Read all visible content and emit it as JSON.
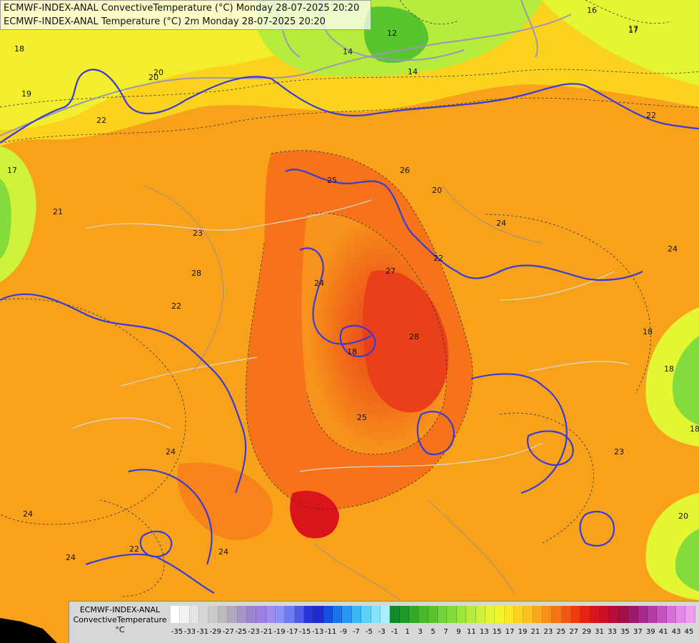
{
  "map": {
    "title_line1": "ECMWF-INDEX-ANAL ConvectiveTemperature (°C) Monday 28-07-2025 20:20",
    "title_line2": "ECMWF-INDEX-ANAL Temperature (°C) 2m Monday 28-07-2025 20:20",
    "contour_labels": [
      "16",
      "17",
      "18",
      "19",
      "20",
      "21",
      "22",
      "22",
      "23",
      "24",
      "24",
      "25",
      "25",
      "26",
      "27",
      "28",
      "28",
      "18",
      "20",
      "22",
      "24",
      "24",
      "14",
      "14",
      "12",
      "17",
      "18",
      "20",
      "22",
      "23",
      "24",
      "24",
      "24",
      "18",
      "22",
      "20",
      "17",
      "18"
    ]
  },
  "legend": {
    "title_line1": "ECMWF-INDEX-ANAL",
    "title_line2": "ConvectiveTemperature",
    "title_line3": "°C",
    "ticks": [
      "-35",
      "-33",
      "-31",
      "-29",
      "-27",
      "-25",
      "-23",
      "-21",
      "-19",
      "-17",
      "-15",
      "-13",
      "-11",
      "-9",
      "-7",
      "-5",
      "-3",
      "-1",
      "1",
      "3",
      "5",
      "7",
      "9",
      "11",
      "13",
      "15",
      "17",
      "19",
      "21",
      "23",
      "25",
      "27",
      "29",
      "31",
      "33",
      "35",
      "37",
      "39",
      "41",
      "43",
      "45"
    ],
    "colors": [
      "#ffffff",
      "#f2f2f2",
      "#e4e4e4",
      "#d6d6d6",
      "#c9c9c9",
      "#bcbcbc",
      "#b0a7bf",
      "#a696c8",
      "#9c84d2",
      "#a080e6",
      "#9f8cf0",
      "#8c91f4",
      "#6f7cf0",
      "#4e5be8",
      "#2a34d8",
      "#1e2bd2",
      "#1450e0",
      "#1a73e8",
      "#2896f0",
      "#38b8f4",
      "#5cd3f6",
      "#85e4f8",
      "#a8f2ff",
      "#128a2c",
      "#1e9a2a",
      "#32aa2a",
      "#48b92a",
      "#58c530",
      "#6ed23a",
      "#84dc3c",
      "#9ee53c",
      "#b6ec3c",
      "#cff23a",
      "#e4f532",
      "#f3f52a",
      "#fbe822",
      "#fbd41e",
      "#fbbf1c",
      "#fba81a",
      "#f98e18",
      "#f77316",
      "#f25614",
      "#ee3b12",
      "#e52414",
      "#d9141a",
      "#c90f28",
      "#b60e38",
      "#a30f4a",
      "#9a1a6a",
      "#a6288a",
      "#b43aa6",
      "#c453c0",
      "#d46ed6",
      "#e28ae6",
      "#ef9cef"
    ]
  },
  "colors": {
    "contour_blue": "#3a3ad6",
    "contour_gray": "#9a98b6",
    "border_light": "#d8d8d8"
  }
}
